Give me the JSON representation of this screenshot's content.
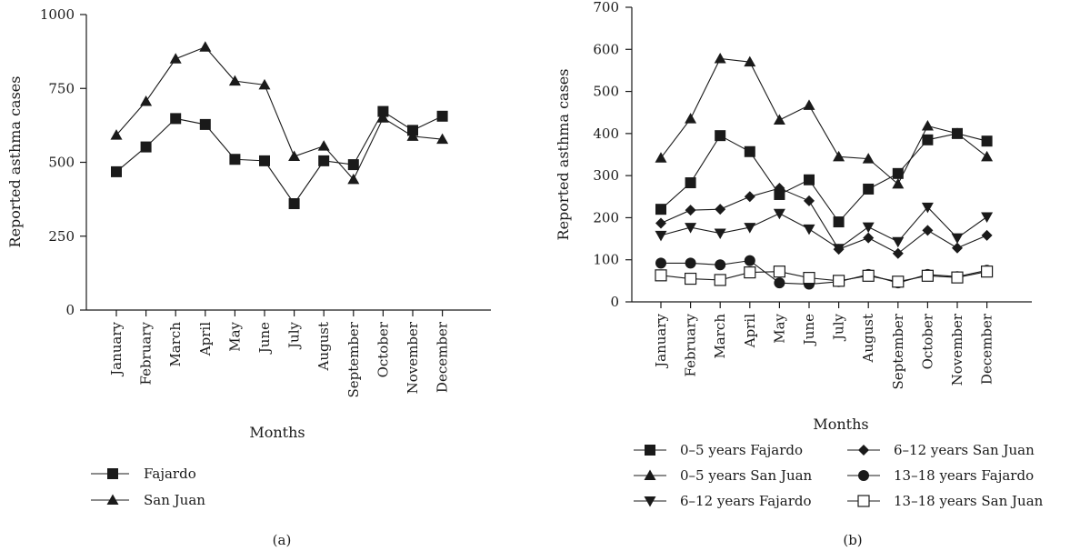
{
  "chart_data": [
    {
      "type": "line",
      "panel_label": "(a)",
      "xlabel": "Months",
      "ylabel": "Reported asthma cases",
      "ylim": [
        0,
        1000
      ],
      "yticks": [
        0,
        250,
        500,
        750,
        1000
      ],
      "categories": [
        "January",
        "February",
        "March",
        "April",
        "May",
        "June",
        "July",
        "August",
        "September",
        "October",
        "November",
        "December"
      ],
      "legend_position": "bottom-left",
      "series": [
        {
          "name": "Fajardo",
          "marker": "square-filled",
          "values": [
            468,
            552,
            648,
            628,
            510,
            505,
            360,
            505,
            492,
            672,
            608,
            656
          ]
        },
        {
          "name": "San Juan",
          "marker": "triangle-filled",
          "values": [
            592,
            706,
            850,
            890,
            775,
            762,
            520,
            555,
            442,
            650,
            588,
            578
          ]
        }
      ]
    },
    {
      "type": "line",
      "panel_label": "(b)",
      "xlabel": "Months",
      "ylabel": "Reported asthma cases",
      "ylim": [
        0,
        700
      ],
      "yticks": [
        0,
        100,
        200,
        300,
        400,
        500,
        600,
        700
      ],
      "categories": [
        "January",
        "February",
        "March",
        "April",
        "May",
        "June",
        "July",
        "August",
        "September",
        "October",
        "November",
        "December"
      ],
      "legend_position": "bottom",
      "series": [
        {
          "name": "0–5 years Fajardo",
          "marker": "square-filled",
          "values": [
            220,
            283,
            395,
            357,
            255,
            290,
            190,
            268,
            305,
            385,
            400,
            382
          ]
        },
        {
          "name": "0–5 years San Juan",
          "marker": "triangle-filled",
          "values": [
            342,
            435,
            578,
            570,
            432,
            467,
            345,
            340,
            280,
            418,
            400,
            345
          ]
        },
        {
          "name": "6–12 years Fajardo",
          "marker": "triangle-down-filled",
          "values": [
            158,
            177,
            163,
            177,
            210,
            173,
            127,
            178,
            143,
            225,
            152,
            202
          ]
        },
        {
          "name": "6–12 years San Juan",
          "marker": "diamond-filled",
          "values": [
            187,
            218,
            220,
            250,
            270,
            240,
            125,
            152,
            115,
            170,
            128,
            158
          ]
        },
        {
          "name": "13–18 years Fajardo",
          "marker": "circle-filled",
          "values": [
            92,
            92,
            88,
            98,
            45,
            42,
            48,
            65,
            45,
            65,
            60,
            75
          ]
        },
        {
          "name": "13–18 years San Juan",
          "marker": "square-open",
          "values": [
            63,
            55,
            52,
            70,
            72,
            57,
            50,
            62,
            48,
            62,
            58,
            72
          ]
        }
      ]
    }
  ]
}
